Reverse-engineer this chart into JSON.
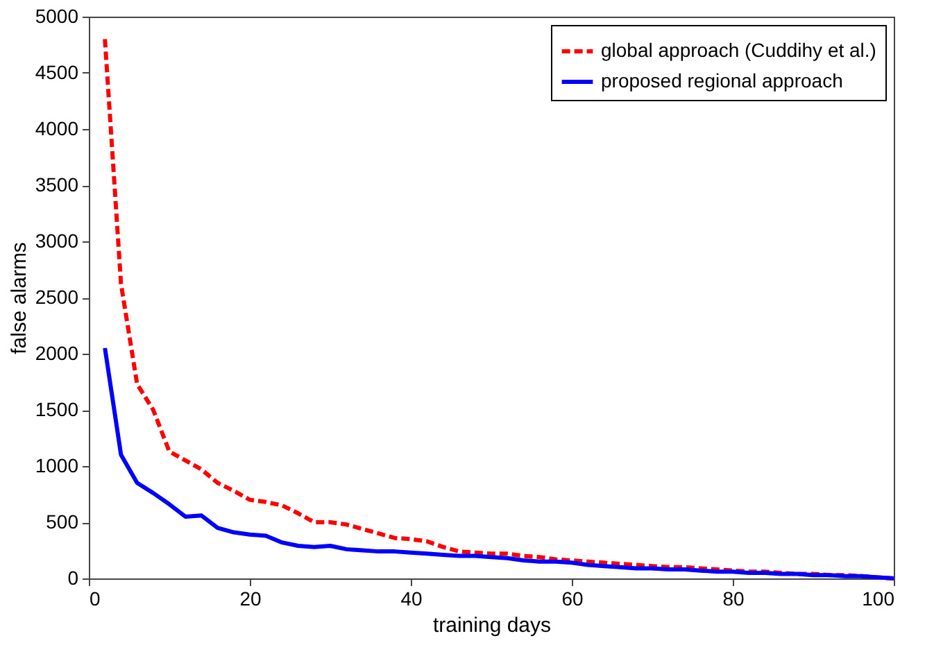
{
  "chart_data": {
    "type": "line",
    "xlabel": "training days",
    "ylabel": "false alarms",
    "x": [
      2,
      4,
      6,
      8,
      10,
      12,
      14,
      16,
      18,
      20,
      22,
      24,
      26,
      28,
      30,
      32,
      34,
      36,
      38,
      40,
      42,
      44,
      46,
      48,
      50,
      52,
      54,
      56,
      58,
      60,
      62,
      64,
      66,
      68,
      70,
      72,
      74,
      76,
      78,
      80,
      82,
      84,
      86,
      88,
      90,
      92,
      94,
      96,
      98,
      100
    ],
    "series": [
      {
        "name": "global approach (Cuddihy et al.)",
        "color": "#ff0000",
        "line_style": "dashed",
        "values": [
          4800,
          2620,
          1730,
          1500,
          1130,
          1050,
          970,
          850,
          780,
          700,
          680,
          650,
          580,
          500,
          500,
          480,
          440,
          400,
          360,
          350,
          330,
          280,
          240,
          230,
          220,
          220,
          200,
          190,
          170,
          160,
          150,
          140,
          130,
          120,
          110,
          100,
          100,
          90,
          80,
          70,
          60,
          60,
          50,
          40,
          40,
          30,
          30,
          20,
          10,
          0
        ]
      },
      {
        "name": "proposed regional approach",
        "color": "#0000ff",
        "line_style": "solid",
        "values": [
          2050,
          1100,
          850,
          760,
          660,
          550,
          560,
          450,
          410,
          390,
          380,
          320,
          290,
          280,
          290,
          260,
          250,
          240,
          240,
          230,
          220,
          210,
          200,
          200,
          190,
          180,
          160,
          150,
          150,
          140,
          120,
          110,
          100,
          90,
          90,
          80,
          80,
          70,
          60,
          60,
          50,
          50,
          40,
          40,
          30,
          30,
          20,
          20,
          10,
          0
        ]
      }
    ],
    "xlim": [
      0,
      100
    ],
    "xticks": [
      0,
      20,
      40,
      60,
      80,
      100
    ],
    "ylim": [
      0,
      5000
    ],
    "yticks": [
      0,
      500,
      1000,
      1500,
      2000,
      2500,
      3000,
      3500,
      4000,
      4500,
      5000
    ],
    "grid": false,
    "legend": "top right"
  }
}
